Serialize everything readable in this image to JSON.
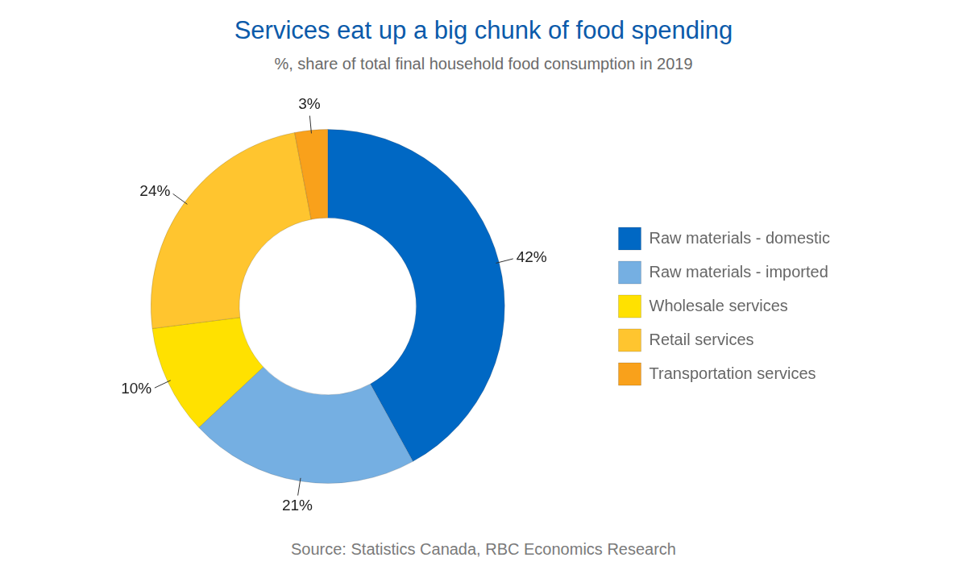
{
  "chart_data": {
    "type": "doughnut",
    "title": "Services eat up a big chunk of food spending",
    "subtitle": "%, share of total final household food consumption in 2019",
    "source": "Source: Statistics Canada, RBC Economics Research",
    "categories": [
      "Raw materials - domestic",
      "Raw materials - imported",
      "Wholesale services",
      "Retail services",
      "Transportation services"
    ],
    "values": [
      42,
      21,
      10,
      24,
      3
    ],
    "value_labels": [
      "42%",
      "21%",
      "10%",
      "24%",
      "3%"
    ],
    "colors": [
      "#0068c4",
      "#75afe2",
      "#ffe100",
      "#ffc52f",
      "#f9a11b"
    ],
    "data_labels": true,
    "legend": "right"
  }
}
